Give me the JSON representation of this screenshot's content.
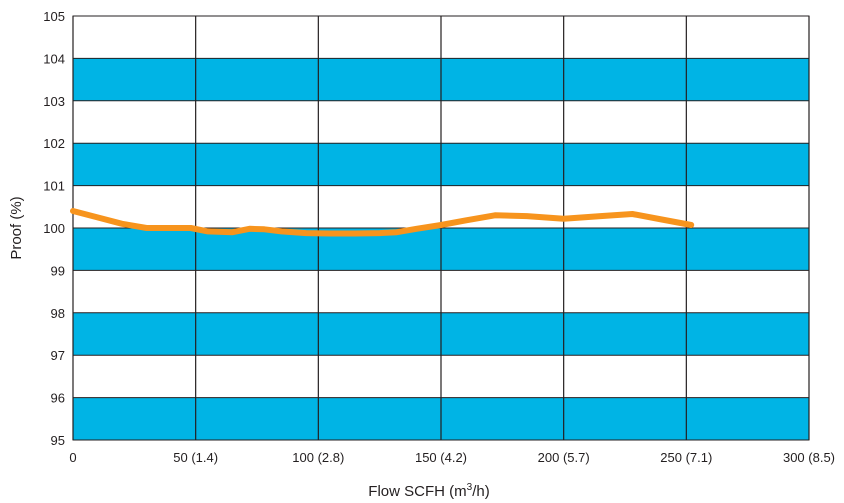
{
  "chart_data": {
    "type": "line",
    "xlabel": "Flow SCFH (m",
    "xlabel_sup": "3",
    "xlabel_tail": "/h)",
    "ylabel": "Proof (%)",
    "xlim": [
      0,
      300
    ],
    "ylim": [
      95,
      105
    ],
    "grid": true,
    "x_ticks": [
      0,
      50,
      100,
      150,
      200,
      250,
      300
    ],
    "x_tick_labels": [
      "0",
      "50 (1.4)",
      "100 (2.8)",
      "150 (4.2)",
      "200 (5.7)",
      "250 (7.1)",
      "300 (8.5)"
    ],
    "y_ticks": [
      95,
      96,
      97,
      98,
      99,
      100,
      101,
      102,
      103,
      104,
      105
    ],
    "y_tick_labels": [
      "95",
      "96",
      "97",
      "98",
      "99",
      "100",
      "101",
      "102",
      "103",
      "104",
      "105"
    ],
    "shaded_bands": [
      [
        95,
        96
      ],
      [
        97,
        98
      ],
      [
        99,
        100
      ],
      [
        101,
        102
      ],
      [
        103,
        104
      ]
    ],
    "series": [
      {
        "x": [
          0,
          10,
          20,
          30,
          40,
          48,
          55,
          65,
          72,
          78,
          85,
          95,
          105,
          115,
          125,
          132,
          140,
          150,
          160,
          172,
          185,
          200,
          215,
          228,
          240,
          252
        ],
        "y": [
          100.4,
          100.25,
          100.1,
          100.0,
          100.0,
          100.0,
          99.92,
          99.9,
          99.98,
          99.97,
          99.92,
          99.88,
          99.87,
          99.87,
          99.88,
          99.9,
          99.98,
          100.07,
          100.18,
          100.3,
          100.28,
          100.22,
          100.28,
          100.33,
          100.2,
          100.07
        ],
        "color": "#f7941d"
      }
    ],
    "colors": {
      "band": "#00b4e5",
      "grid": "#231f20",
      "text": "#231f20",
      "background": "#ffffff"
    }
  }
}
